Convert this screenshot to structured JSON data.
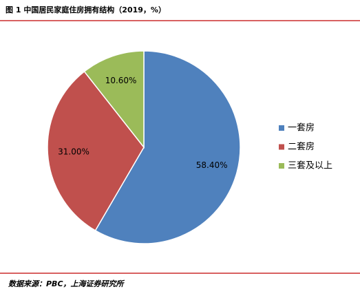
{
  "chart_data": {
    "type": "pie",
    "title": "图 1 中国居民家庭住房拥有结构（2019，%）",
    "categories": [
      "一套房",
      "二套房",
      "三套及以上"
    ],
    "values": [
      58.4,
      31.0,
      10.6
    ],
    "value_labels": [
      "58.40%",
      "31.00%",
      "10.60%"
    ],
    "colors": [
      "#4f81bd",
      "#c0504d",
      "#9bbb59"
    ],
    "legend": "right",
    "source": "数据来源：PBC，上海证券研究所"
  }
}
